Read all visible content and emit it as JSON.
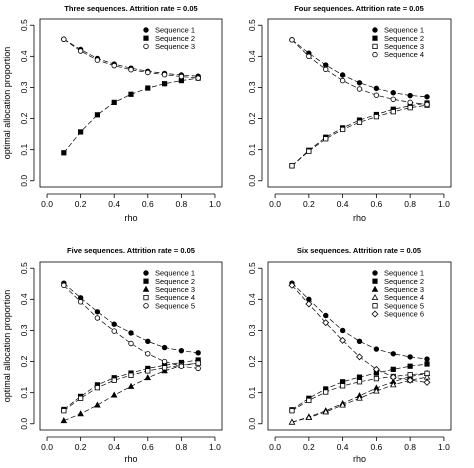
{
  "chart_data": [
    {
      "type": "line",
      "title": "Three sequences. Attrition rate = 0.05",
      "xlabel": "rho",
      "ylabel": "optimal allocation proportion",
      "xlim": [
        0.0,
        1.0
      ],
      "ylim": [
        0.0,
        0.5
      ],
      "xticks": [
        "0.0",
        "0.2",
        "0.4",
        "0.6",
        "0.8",
        "1.0"
      ],
      "yticks": [
        "0.0",
        "0.1",
        "0.2",
        "0.3",
        "0.4",
        "0.5"
      ],
      "legend_position": "top-right",
      "x": [
        0.1,
        0.2,
        0.3,
        0.4,
        0.5,
        0.6,
        0.7,
        0.8,
        0.9
      ],
      "series": [
        {
          "name": "Sequence 1",
          "marker": "filled-circle",
          "values": [
            0.455,
            0.422,
            0.393,
            0.375,
            0.362,
            0.352,
            0.345,
            0.34,
            0.336
          ]
        },
        {
          "name": "Sequence 2",
          "marker": "filled-square",
          "values": [
            0.09,
            0.157,
            0.212,
            0.252,
            0.278,
            0.298,
            0.312,
            0.322,
            0.33
          ]
        },
        {
          "name": "Sequence 3",
          "marker": "open-circle",
          "values": [
            0.455,
            0.417,
            0.388,
            0.37,
            0.357,
            0.348,
            0.341,
            0.335,
            0.33
          ]
        }
      ]
    },
    {
      "type": "line",
      "title": "Four sequences. Attrition rate = 0.05",
      "xlabel": "rho",
      "ylabel": "",
      "xlim": [
        0.0,
        1.0
      ],
      "ylim": [
        0.0,
        0.5
      ],
      "xticks": [
        "0.0",
        "0.2",
        "0.4",
        "0.6",
        "0.8",
        "1.0"
      ],
      "yticks": [
        "0.0",
        "0.1",
        "0.2",
        "0.3",
        "0.4",
        "0.5"
      ],
      "legend_position": "top-right",
      "x": [
        0.1,
        0.2,
        0.3,
        0.4,
        0.5,
        0.6,
        0.7,
        0.8,
        0.9
      ],
      "series": [
        {
          "name": "Sequence 1",
          "marker": "filled-circle",
          "values": [
            0.453,
            0.41,
            0.372,
            0.34,
            0.315,
            0.297,
            0.283,
            0.274,
            0.27
          ]
        },
        {
          "name": "Sequence 2",
          "marker": "filled-square",
          "values": [
            0.048,
            0.098,
            0.14,
            0.17,
            0.195,
            0.213,
            0.23,
            0.241,
            0.25
          ]
        },
        {
          "name": "Sequence 3",
          "marker": "open-square",
          "values": [
            0.048,
            0.095,
            0.135,
            0.165,
            0.188,
            0.206,
            0.222,
            0.235,
            0.243
          ]
        },
        {
          "name": "Sequence 4",
          "marker": "open-circle",
          "values": [
            0.453,
            0.4,
            0.358,
            0.322,
            0.295,
            0.275,
            0.262,
            0.252,
            0.245
          ]
        }
      ]
    },
    {
      "type": "line",
      "title": "Five sequences. Attrition rate = 0.05",
      "xlabel": "rho",
      "ylabel": "optimal allocation proportion",
      "xlim": [
        0.0,
        1.0
      ],
      "ylim": [
        0.0,
        0.5
      ],
      "xticks": [
        "0.0",
        "0.2",
        "0.4",
        "0.6",
        "0.8",
        "1.0"
      ],
      "yticks": [
        "0.0",
        "0.1",
        "0.2",
        "0.3",
        "0.4",
        "0.5"
      ],
      "legend_position": "top-right",
      "x": [
        0.1,
        0.2,
        0.3,
        0.4,
        0.5,
        0.6,
        0.7,
        0.8,
        0.9
      ],
      "series": [
        {
          "name": "Sequence 1",
          "marker": "filled-circle",
          "values": [
            0.452,
            0.405,
            0.36,
            0.32,
            0.292,
            0.265,
            0.245,
            0.235,
            0.228
          ]
        },
        {
          "name": "Sequence 2",
          "marker": "filled-square",
          "values": [
            0.046,
            0.088,
            0.125,
            0.148,
            0.163,
            0.178,
            0.188,
            0.197,
            0.205
          ]
        },
        {
          "name": "Sequence 3",
          "marker": "filled-triangle",
          "values": [
            0.01,
            0.032,
            0.06,
            0.092,
            0.12,
            0.148,
            0.17,
            0.187,
            0.195
          ]
        },
        {
          "name": "Sequence 4",
          "marker": "open-square",
          "values": [
            0.042,
            0.082,
            0.116,
            0.14,
            0.156,
            0.17,
            0.18,
            0.188,
            0.195
          ]
        },
        {
          "name": "Sequence 5",
          "marker": "open-circle",
          "values": [
            0.445,
            0.392,
            0.34,
            0.298,
            0.258,
            0.225,
            0.2,
            0.185,
            0.178
          ]
        }
      ]
    },
    {
      "type": "line",
      "title": "Six sequences. Attrition rate = 0.05",
      "xlabel": "rho",
      "ylabel": "",
      "xlim": [
        0.0,
        1.0
      ],
      "ylim": [
        0.0,
        0.5
      ],
      "xticks": [
        "0.0",
        "0.2",
        "0.4",
        "0.6",
        "0.8",
        "1.0"
      ],
      "yticks": [
        "0.0",
        "0.1",
        "0.2",
        "0.3",
        "0.4",
        "0.5"
      ],
      "legend_position": "top-right",
      "x": [
        0.1,
        0.2,
        0.3,
        0.4,
        0.5,
        0.6,
        0.7,
        0.8,
        0.9
      ],
      "series": [
        {
          "name": "Sequence 1",
          "marker": "filled-circle",
          "values": [
            0.452,
            0.4,
            0.348,
            0.3,
            0.265,
            0.24,
            0.225,
            0.215,
            0.208
          ]
        },
        {
          "name": "Sequence 2",
          "marker": "filled-square",
          "values": [
            0.045,
            0.082,
            0.112,
            0.135,
            0.15,
            0.163,
            0.175,
            0.185,
            0.192
          ]
        },
        {
          "name": "Sequence 3",
          "marker": "filled-triangle",
          "values": [
            0.005,
            0.022,
            0.042,
            0.065,
            0.09,
            0.115,
            0.135,
            0.152,
            0.162
          ]
        },
        {
          "name": "Sequence 4",
          "marker": "open-triangle",
          "values": [
            0.005,
            0.02,
            0.038,
            0.06,
            0.082,
            0.105,
            0.125,
            0.14,
            0.15
          ]
        },
        {
          "name": "Sequence 5",
          "marker": "open-square",
          "values": [
            0.042,
            0.075,
            0.102,
            0.122,
            0.135,
            0.145,
            0.152,
            0.158,
            0.162
          ]
        },
        {
          "name": "Sequence 6",
          "marker": "open-diamond",
          "values": [
            0.445,
            0.385,
            0.325,
            0.268,
            0.215,
            0.175,
            0.15,
            0.14,
            0.133
          ]
        }
      ]
    }
  ]
}
